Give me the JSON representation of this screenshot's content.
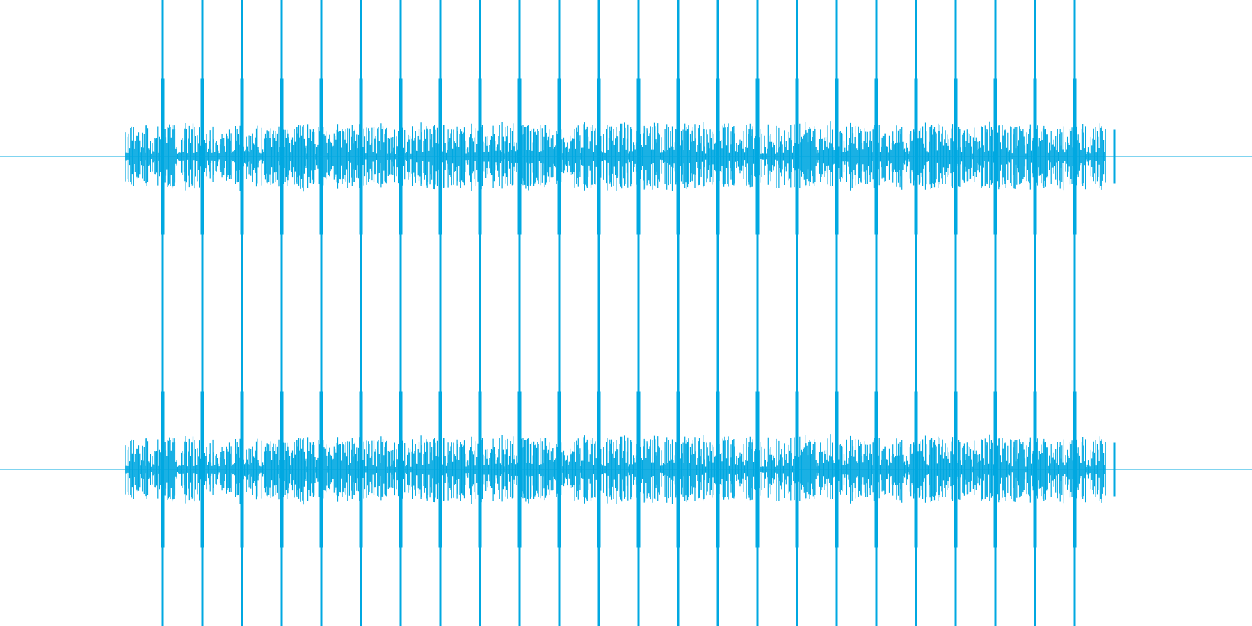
{
  "waveform": {
    "color": "#00a8e1",
    "background": "#ffffff",
    "duration_seconds": 30,
    "channels": [
      {
        "name": "",
        "spike_amplitude": 1.0,
        "body_amplitude": 0.18
      },
      {
        "name": "",
        "spike_amplitude": 1.0,
        "body_amplitude": 0.18
      }
    ],
    "signal": {
      "start_seconds": 3.0,
      "end_seconds": 26.5,
      "tail_seconds": 26.7,
      "spike_times_seconds": [
        3.9,
        4.85,
        5.8,
        6.75,
        7.7,
        8.65,
        9.6,
        10.55,
        11.5,
        12.45,
        13.4,
        14.35,
        15.3,
        16.25,
        17.2,
        18.15,
        19.1,
        20.05,
        21.0,
        21.95,
        22.9,
        23.85,
        24.8,
        25.75
      ]
    }
  }
}
